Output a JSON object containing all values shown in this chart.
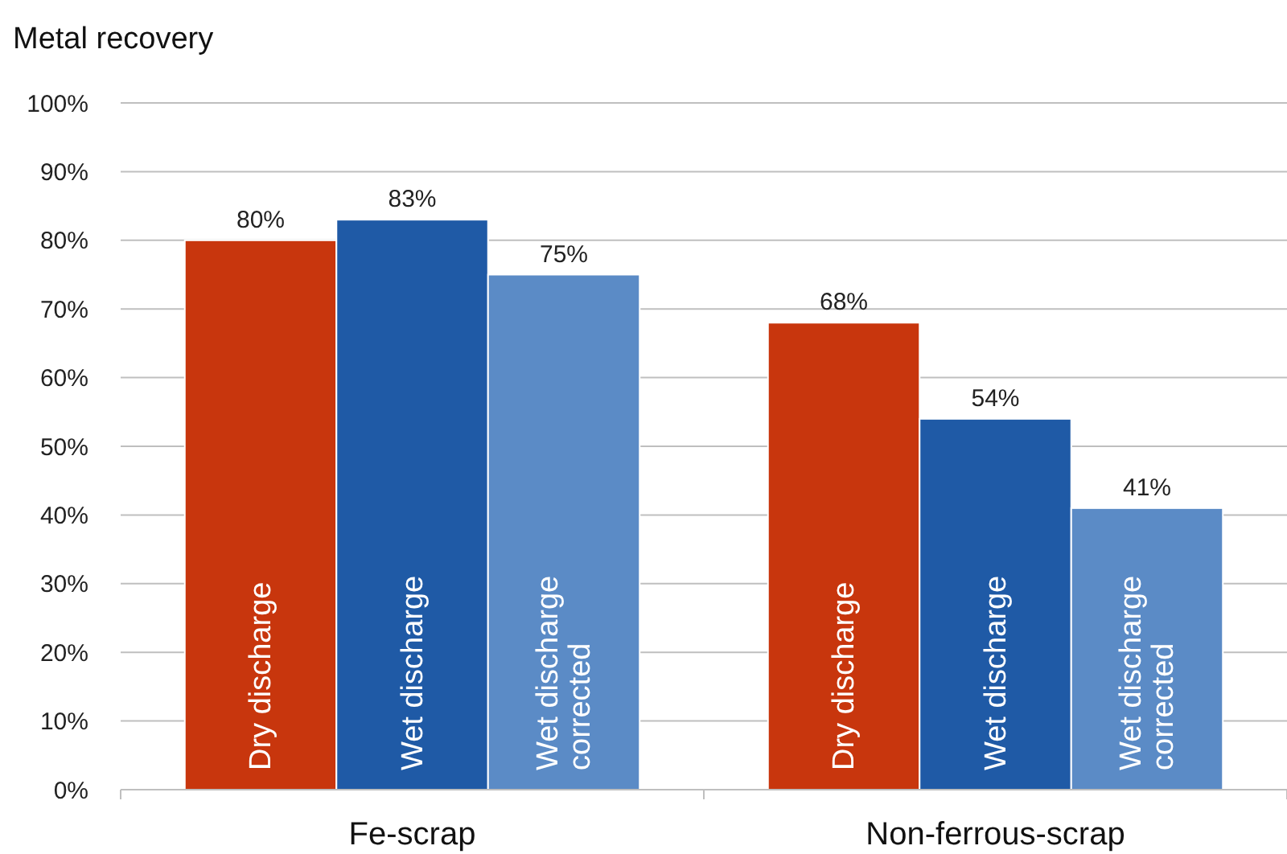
{
  "chart_data": {
    "type": "bar",
    "ylabel": "Metal recovery",
    "categories": [
      "Fe-scrap",
      "Non-ferrous-scrap"
    ],
    "series": [
      {
        "name": "Dry discharge",
        "color": "#c8360d",
        "values": [
          80,
          68
        ],
        "value_labels": [
          "80%",
          "68%"
        ]
      },
      {
        "name": "Wet discharge",
        "color": "#1f5aa6",
        "values": [
          83,
          54
        ],
        "value_labels": [
          "83%",
          "54%"
        ]
      },
      {
        "name": "Wet discharge corrected",
        "color": "#5b8bc6",
        "values": [
          75,
          41
        ],
        "value_labels": [
          "75%",
          "41%"
        ]
      }
    ],
    "ylim": [
      0,
      100
    ],
    "yticks": [
      {
        "value": 0,
        "label": "0%"
      },
      {
        "value": 10,
        "label": "10%"
      },
      {
        "value": 20,
        "label": "20%"
      },
      {
        "value": 30,
        "label": "30%"
      },
      {
        "value": 40,
        "label": "40%"
      },
      {
        "value": 50,
        "label": "50%"
      },
      {
        "value": 60,
        "label": "60%"
      },
      {
        "value": 70,
        "label": "70%"
      },
      {
        "value": 80,
        "label": "80%"
      },
      {
        "value": 90,
        "label": "90%"
      },
      {
        "value": 100,
        "label": "100%"
      }
    ],
    "grid": "y"
  }
}
